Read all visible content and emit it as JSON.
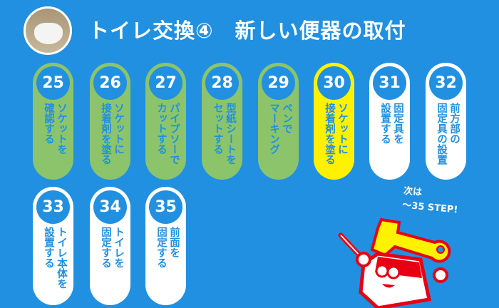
{
  "header": {
    "title": "トイレ交換④　新しい便器の取付"
  },
  "steps": [
    {
      "num": "25",
      "label": "ソケットを\n確認する",
      "status": "done"
    },
    {
      "num": "26",
      "label": "ソケットに\n接着剤を塗る",
      "status": "done"
    },
    {
      "num": "27",
      "label": "パイプソーで\nカットする",
      "status": "done"
    },
    {
      "num": "28",
      "label": "型紙シートを\nセットする",
      "status": "done"
    },
    {
      "num": "29",
      "label": "ペンで\nマーキング",
      "status": "done"
    },
    {
      "num": "30",
      "label": "ソケットに\n接着剤を塗る",
      "status": "current"
    },
    {
      "num": "31",
      "label": "固定具を\n設置する",
      "status": "todo"
    },
    {
      "num": "32",
      "label": "前方部の\n固定具の設置",
      "status": "todo"
    },
    {
      "num": "33",
      "label": "トイレ本体を\n設置する",
      "status": "todo"
    },
    {
      "num": "34",
      "label": "トイレを\n固定する",
      "status": "todo"
    },
    {
      "num": "35",
      "label": "前面を\n固定する",
      "status": "todo"
    }
  ],
  "next": {
    "line1": "次は",
    "line2": "～35 STEP!"
  },
  "colors": {
    "background": "#2190e0",
    "done": "#8cc46c",
    "current": "#fff200",
    "todo": "#ffffff",
    "mascot": "#e60012"
  }
}
